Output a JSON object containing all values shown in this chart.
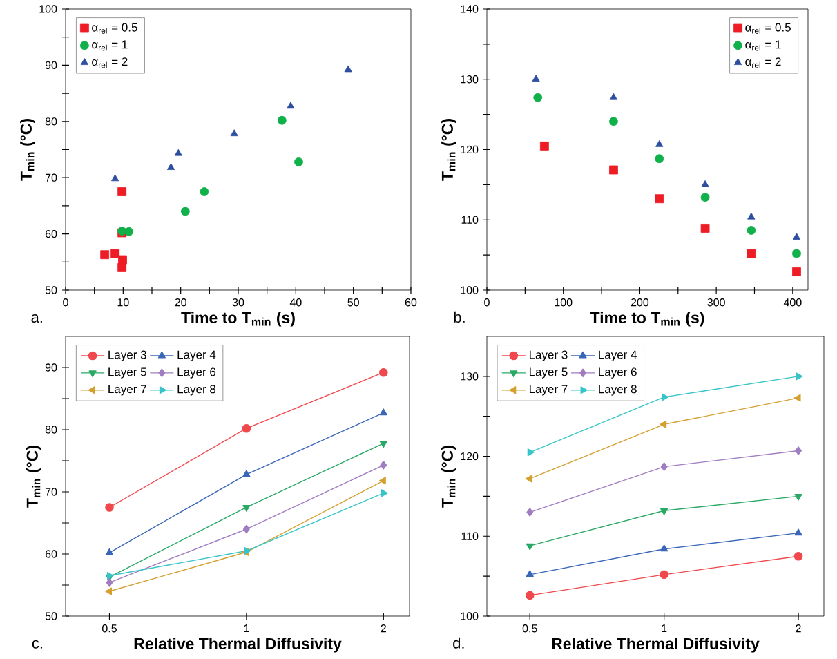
{
  "chart_data": [
    {
      "type": "scatter",
      "xlabel": "Time to T$_{min}$ (s)",
      "ylabel": "T$_{min}$ (°C)",
      "xlim": [
        0,
        60
      ],
      "ylim": [
        50,
        100
      ],
      "xticks": [
        0,
        {
          "value": 5,
          "label": null
        },
        10,
        {
          "value": 15,
          "label": null
        },
        20,
        {
          "value": 25,
          "label": null
        },
        30,
        {
          "value": 35,
          "label": null
        },
        40,
        {
          "value": 45,
          "label": null
        },
        50,
        {
          "value": 55,
          "label": null
        },
        60
      ],
      "yticks": [
        50,
        {
          "value": 55,
          "label": null
        },
        60,
        {
          "value": 65,
          "label": null
        },
        70,
        {
          "value": 75,
          "label": null
        },
        80,
        {
          "value": 85,
          "label": null
        },
        90,
        {
          "value": 95,
          "label": null
        },
        100
      ],
      "legend": "top left",
      "annotations": [
        "a."
      ],
      "series": [
        {
          "name": "α$_{rel}$ = 0.5",
          "color": "#ee1c25",
          "marker": "square",
          "x": [
            9.8,
            9.8,
            6.8,
            9.9,
            9.8,
            8.6
          ],
          "values": [
            67.5,
            60.2,
            56.3,
            55.4,
            54.0,
            56.5
          ]
        },
        {
          "name": "α$_{rel}$ = 1",
          "color": "#10b04a",
          "marker": "circle",
          "x": [
            37.6,
            40.5,
            24.1,
            20.8,
            11.0,
            9.8
          ],
          "values": [
            80.2,
            72.8,
            67.5,
            64.0,
            60.4,
            60.5
          ]
        },
        {
          "name": "α$_{rel}$ = 2",
          "color": "#2e4ea0",
          "marker": "triangle",
          "x": [
            49.1,
            39.1,
            29.3,
            19.6,
            18.3,
            8.6
          ],
          "values": [
            89.2,
            82.7,
            77.8,
            74.3,
            71.8,
            69.8
          ]
        }
      ]
    },
    {
      "type": "scatter",
      "xlabel": "Time to T$_{min}$ (s)",
      "ylabel": "T$_{min}$ (°C)",
      "xlim": [
        0,
        420
      ],
      "ylim": [
        100,
        140
      ],
      "xticks": [
        0,
        {
          "value": 50,
          "label": null
        },
        100,
        {
          "value": 150,
          "label": null
        },
        200,
        {
          "value": 250,
          "label": null
        },
        300,
        {
          "value": 350,
          "label": null
        },
        400
      ],
      "yticks": [
        100,
        {
          "value": 105,
          "label": null
        },
        110,
        {
          "value": 115,
          "label": null
        },
        120,
        {
          "value": 125,
          "label": null
        },
        130,
        {
          "value": 135,
          "label": null
        },
        140
      ],
      "legend": "top right",
      "annotations": [
        "b."
      ],
      "series": [
        {
          "name": "α$_{rel}$ = 0.5",
          "color": "#ee1c25",
          "marker": "square",
          "x": [
            75.3,
            165.7,
            225.6,
            285.5,
            345.8,
            405.1
          ],
          "values": [
            120.5,
            117.1,
            113.0,
            108.8,
            105.2,
            102.6
          ]
        },
        {
          "name": "α$_{rel}$ = 1",
          "color": "#10b04a",
          "marker": "circle",
          "x": [
            66.6,
            165.7,
            225.6,
            285.5,
            345.8,
            405.1
          ],
          "values": [
            127.4,
            124.0,
            118.7,
            113.2,
            108.5,
            105.2
          ]
        },
        {
          "name": "α$_{rel}$ = 2",
          "color": "#2e4ea0",
          "marker": "triangle",
          "x": [
            64.2,
            165.7,
            225.6,
            285.5,
            345.8,
            405.1
          ],
          "values": [
            130.0,
            127.4,
            120.7,
            115.0,
            110.4,
            107.5
          ]
        }
      ]
    },
    {
      "type": "line",
      "xlabel": "Relative Thermal Diffusivity",
      "ylabel": "T$_{min}$ (°C)",
      "categories": [
        "0.5",
        "1",
        "2"
      ],
      "ylim": [
        50,
        95
      ],
      "yticks": [
        50,
        {
          "value": 55,
          "label": null
        },
        60,
        {
          "value": 65,
          "label": null
        },
        70,
        {
          "value": 75,
          "label": null
        },
        80,
        {
          "value": 85,
          "label": null
        },
        90
      ],
      "legend": "top left",
      "annotations": [
        "c."
      ],
      "series": [
        {
          "name": "Layer 3",
          "color": "#f0484c",
          "marker": "circle",
          "values": [
            67.5,
            80.2,
            89.2
          ]
        },
        {
          "name": "Layer 4",
          "color": "#3a66b8",
          "marker": "triangle",
          "values": [
            60.2,
            72.8,
            82.7
          ]
        },
        {
          "name": "Layer 5",
          "color": "#2aa866",
          "marker": "triangle_down",
          "values": [
            56.3,
            67.5,
            77.8
          ]
        },
        {
          "name": "Layer 6",
          "color": "#a07cc0",
          "marker": "diamond",
          "values": [
            55.4,
            64.0,
            74.3
          ]
        },
        {
          "name": "Layer 7",
          "color": "#d4a030",
          "marker": "triangle_left",
          "values": [
            54.0,
            60.3,
            71.8
          ]
        },
        {
          "name": "Layer 8",
          "color": "#38c4c8",
          "marker": "triangle_right",
          "values": [
            56.5,
            60.5,
            69.8
          ]
        }
      ]
    },
    {
      "type": "line",
      "xlabel": "Relative Thermal Diffusivity",
      "ylabel": "T$_{min}$ (°C)",
      "categories": [
        "0.5",
        "1",
        "2"
      ],
      "ylim": [
        100,
        135
      ],
      "yticks": [
        100,
        {
          "value": 105,
          "label": null
        },
        110,
        {
          "value": 115,
          "label": null
        },
        120,
        {
          "value": 125,
          "label": null
        },
        130
      ],
      "legend": "top left",
      "annotations": [
        "d."
      ],
      "series": [
        {
          "name": "Layer 3",
          "color": "#f0484c",
          "marker": "circle",
          "values": [
            102.6,
            105.2,
            107.5
          ]
        },
        {
          "name": "Layer 4",
          "color": "#3a66b8",
          "marker": "triangle",
          "values": [
            105.2,
            108.4,
            110.4
          ]
        },
        {
          "name": "Layer 5",
          "color": "#2aa866",
          "marker": "triangle_down",
          "values": [
            108.8,
            113.2,
            115.0
          ]
        },
        {
          "name": "Layer 6",
          "color": "#a07cc0",
          "marker": "diamond",
          "values": [
            113.0,
            118.7,
            120.7
          ]
        },
        {
          "name": "Layer 7",
          "color": "#d4a030",
          "marker": "triangle_left",
          "values": [
            117.2,
            124.0,
            127.3
          ]
        },
        {
          "name": "Layer 8",
          "color": "#38c4c8",
          "marker": "triangle_right",
          "values": [
            120.5,
            127.4,
            130.0
          ]
        }
      ]
    }
  ]
}
